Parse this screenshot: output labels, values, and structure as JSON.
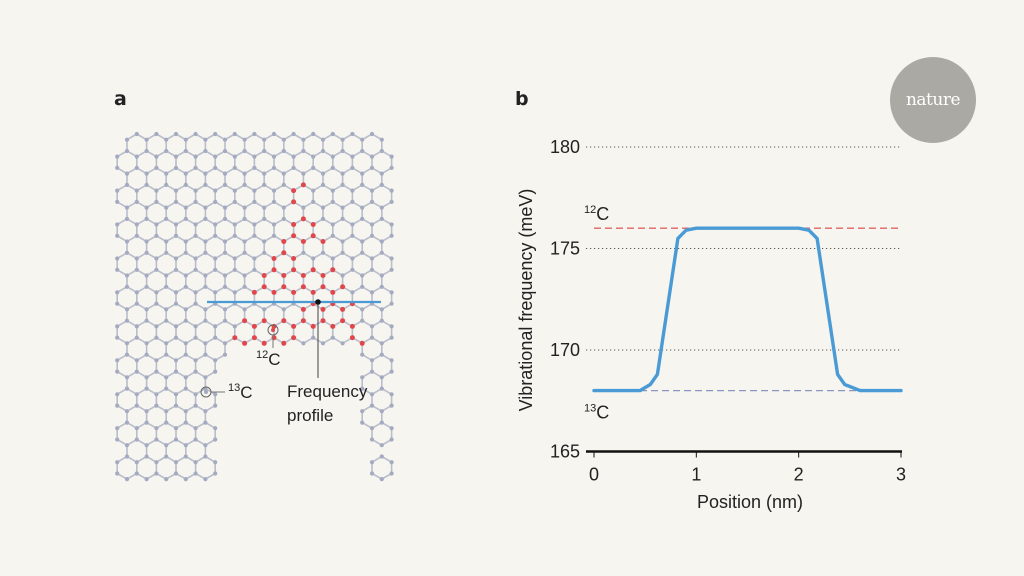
{
  "panel_a": {
    "label": "a",
    "c12_label": {
      "sup": "12",
      "base": "C"
    },
    "c13_label": {
      "sup": "13",
      "base": "C"
    },
    "profile_label_line1": "Frequency",
    "profile_label_line2": "profile",
    "colors": {
      "lattice": "#a4aac0",
      "c12_atoms": "#e0474c",
      "profile_line": "#4a9ad6"
    }
  },
  "panel_b": {
    "label": "b"
  },
  "logo": {
    "text": "nature"
  },
  "chart_data": {
    "type": "line",
    "title": "",
    "xlabel": "Position (nm)",
    "ylabel": "Vibrational frequency (meV)",
    "xlim": [
      0,
      3
    ],
    "ylim": [
      165,
      180
    ],
    "xticks": [
      "0",
      "1",
      "2",
      "3"
    ],
    "yticks": [
      "165",
      "170",
      "175",
      "180"
    ],
    "grid": "dotted horizontal at 170, 175, 180",
    "series": [
      {
        "name": "Frequency profile",
        "color": "#4a9ad6",
        "x": [
          0,
          0.45,
          0.55,
          0.62,
          0.82,
          0.9,
          1.0,
          2.0,
          2.1,
          2.18,
          2.38,
          2.45,
          2.6,
          3.0
        ],
        "y": [
          168,
          168,
          168.3,
          168.8,
          175.5,
          175.9,
          176,
          176,
          175.9,
          175.5,
          168.8,
          168.3,
          168,
          168
        ]
      }
    ],
    "reference_lines": [
      {
        "label_sup": "12",
        "label_base": "C",
        "y": 176,
        "x_range": [
          0,
          3
        ],
        "color": "#e06464",
        "style": "dashed"
      },
      {
        "label_sup": "13",
        "label_base": "C",
        "y": 168,
        "x_range": [
          0.45,
          2.6
        ],
        "color": "#8a96bf",
        "style": "dashed"
      }
    ]
  }
}
